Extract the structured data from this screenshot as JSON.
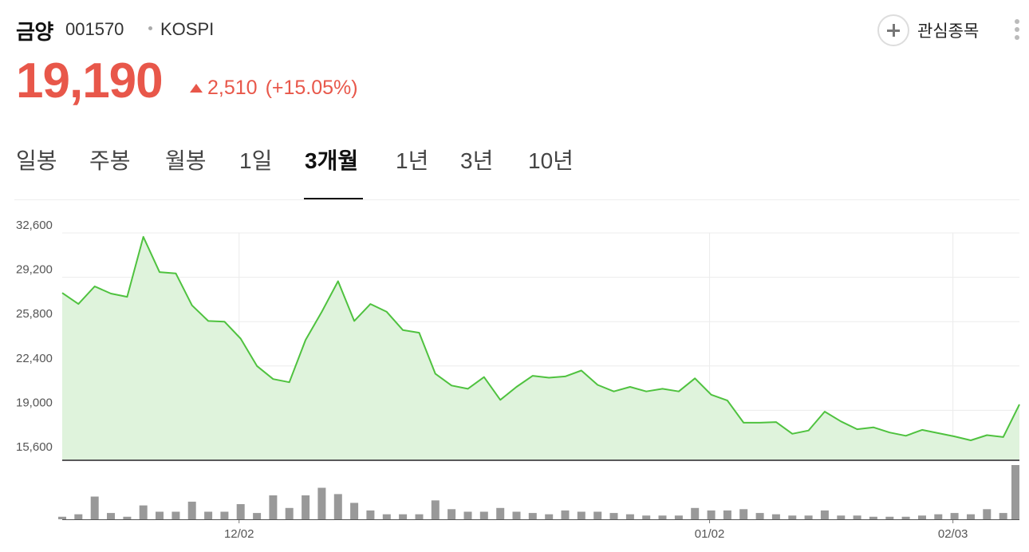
{
  "stock": {
    "name": "금양",
    "code": "001570",
    "market": "KOSPI",
    "price": "19,190",
    "change": "2,510",
    "change_pct": "(+15.05%)",
    "direction_icon": "up-triangle-icon"
  },
  "actions": {
    "favorite_label": "관심종목",
    "favorite_icon": "plus-circle-icon",
    "more_icon": "vertical-ellipsis-icon"
  },
  "tabs": [
    {
      "label": "일봉",
      "active": false
    },
    {
      "label": "주봉",
      "active": false
    },
    {
      "label": "월봉",
      "active": false
    },
    {
      "label": "1일",
      "active": false
    },
    {
      "label": "3개월",
      "active": true
    },
    {
      "label": "1년",
      "active": false
    },
    {
      "label": "3년",
      "active": false
    },
    {
      "label": "10년",
      "active": false
    }
  ],
  "colors": {
    "price_up": "#e8574a",
    "line": "#4fc23f",
    "area_fill": "#dff3dc",
    "volume_bar": "#999999"
  },
  "chart_data": {
    "type": "area",
    "y_ticks": [
      "32,600",
      "29,200",
      "25,800",
      "22,400",
      "19,000",
      "15,600"
    ],
    "ylim": [
      15600,
      32600
    ],
    "date_labels": [
      "12/02",
      "01/02",
      "02/03"
    ],
    "grid": true,
    "series": [
      {
        "values": [
          28000,
          27150,
          28500,
          27950,
          27700,
          32300,
          29600,
          29500,
          27050,
          25850,
          25800,
          24500,
          22400,
          21400,
          21150,
          24400,
          26550,
          28900,
          25850,
          27150,
          26550,
          25150,
          24950,
          21800,
          20900,
          20650,
          21550,
          19800,
          20800,
          21650,
          21500,
          21600,
          22050,
          20950,
          20450,
          20800,
          20450,
          20650,
          20450,
          21450,
          20200,
          19750,
          18050,
          18050,
          18100,
          17200,
          17450,
          18900,
          18150,
          17550,
          17700,
          17300,
          17050,
          17500,
          17250,
          17000,
          16700,
          17100,
          16950,
          19450
        ]
      }
    ],
    "volume": [
      2,
      4,
      18,
      5,
      2,
      11,
      6,
      6,
      14,
      6,
      6,
      12,
      5,
      19,
      9,
      19,
      25,
      20,
      13,
      7,
      4,
      4,
      4,
      15,
      8,
      6,
      6,
      9,
      6,
      5,
      4,
      7,
      6,
      6,
      5,
      4,
      3,
      3,
      3,
      9,
      7,
      7,
      8,
      5,
      4,
      3,
      3,
      7,
      3,
      3,
      2,
      2,
      2,
      3,
      4,
      5,
      4,
      8,
      5,
      43
    ]
  }
}
